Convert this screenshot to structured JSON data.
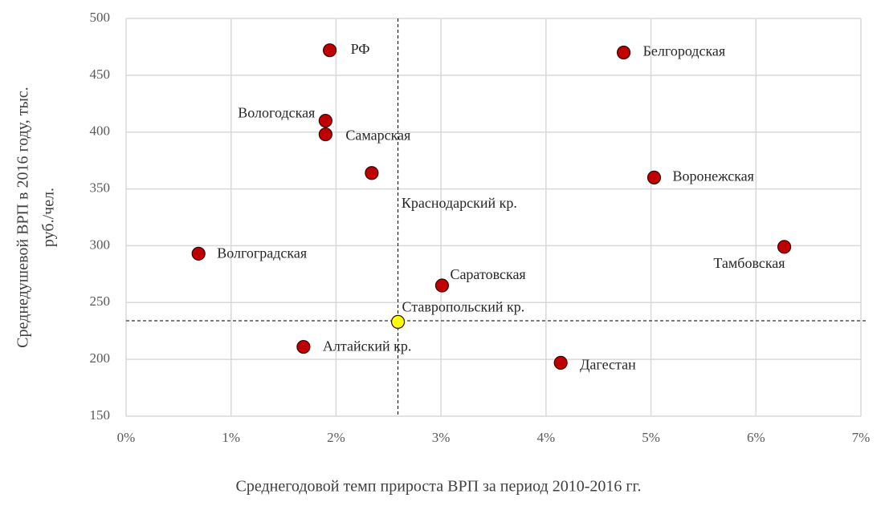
{
  "chart_data": {
    "type": "scatter",
    "x_label": "Среднегодовой темп прироста ВРП за период 2010-2016 гг.",
    "y_label": [
      "Среднедушевой ВРП в 2016 году, тыс.",
      "руб./чел."
    ],
    "labels": [
      "РФ",
      "Белгородская",
      "Вологодская",
      "Самарская",
      "Краснодарский кр.",
      "Воронежская",
      "Тамбовская",
      "Волгоградская",
      "Саратовская",
      "Ставропольский кр.",
      "Алтайский кр.",
      "Дагестан"
    ],
    "x": [
      1.94,
      4.74,
      1.9,
      1.9,
      2.34,
      5.03,
      6.27,
      0.69,
      3.01,
      2.59,
      1.69,
      4.14
    ],
    "values": [
      472,
      470,
      410,
      398,
      364,
      360,
      299,
      293,
      265,
      233,
      211,
      197
    ],
    "colors": [
      "#c00000",
      "#c00000",
      "#c00000",
      "#c00000",
      "#c00000",
      "#c00000",
      "#c00000",
      "#c00000",
      "#c00000",
      "#ffff00",
      "#c00000",
      "#c00000"
    ],
    "reference_x": 2.59,
    "reference_y": 234,
    "xlim": [
      0,
      7
    ],
    "xticks": [
      {
        "value": 0,
        "label": "0%"
      },
      {
        "value": 1,
        "label": "1%"
      },
      {
        "value": 2,
        "label": "2%"
      },
      {
        "value": 3,
        "label": "3%"
      },
      {
        "value": 4,
        "label": "4%"
      },
      {
        "value": 5,
        "label": "5%"
      },
      {
        "value": 6,
        "label": "6%"
      },
      {
        "value": 7,
        "label": "7%"
      }
    ],
    "ylim": [
      150,
      500
    ],
    "yticks": [
      150,
      200,
      250,
      300,
      350,
      400,
      450,
      500
    ],
    "grid": true
  }
}
